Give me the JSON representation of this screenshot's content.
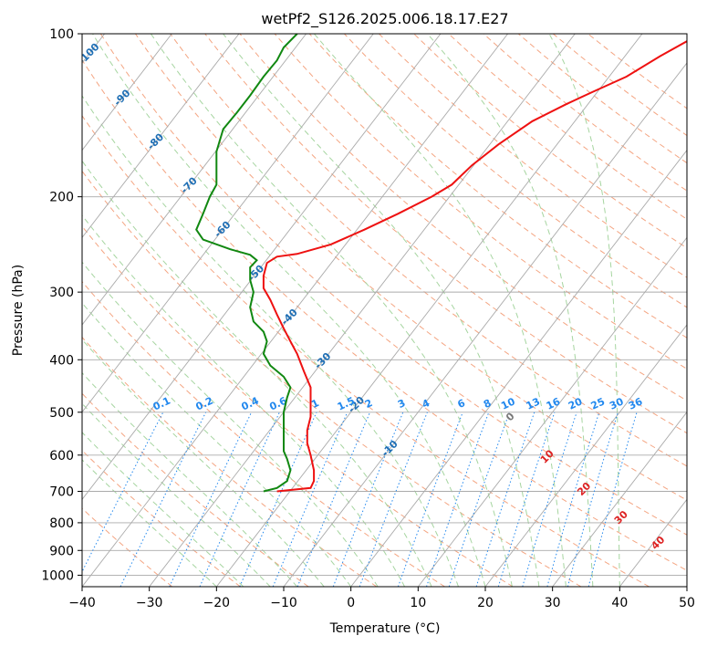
{
  "chart_data": {
    "type": "line",
    "title": "wetPf2_S126.2025.006.18.17.E27",
    "xlabel": "Temperature (°C)",
    "ylabel": "Pressure (hPa)",
    "xlim": [
      -40,
      50
    ],
    "ylim": [
      1050,
      100
    ],
    "y_scale": "log",
    "grid": true,
    "x_ticks": [
      -40,
      -30,
      -20,
      -10,
      0,
      10,
      20,
      30,
      40,
      50
    ],
    "y_ticks": [
      100,
      200,
      300,
      400,
      500,
      600,
      700,
      800,
      900,
      1000
    ],
    "colors": {
      "temperature": "#ee1111",
      "dewpoint": "#118811",
      "isotherm_label": "#1f6fb5",
      "mixing_ratio": "#2288ee",
      "thetae_label": "#dd2222",
      "dry_adiabat": "#f4a582",
      "moist_adiabat": "#a6d5a0",
      "grid": "#aaaaaa"
    },
    "series": [
      {
        "key": "temperature",
        "points": [
          [
            -11,
            700
          ],
          [
            -6,
            690
          ],
          [
            -5.5,
            670
          ],
          [
            -5.5,
            640
          ],
          [
            -6,
            600
          ],
          [
            -6.5,
            570
          ],
          [
            -6.5,
            540
          ],
          [
            -6,
            510
          ],
          [
            -6,
            480
          ],
          [
            -6,
            450
          ],
          [
            -7,
            420
          ],
          [
            -8,
            390
          ],
          [
            -9,
            370
          ],
          [
            -10,
            350
          ],
          [
            -11,
            330
          ],
          [
            -12,
            310
          ],
          [
            -13,
            295
          ],
          [
            -13,
            280
          ],
          [
            -12.5,
            265
          ],
          [
            -11,
            258
          ],
          [
            -8,
            255
          ],
          [
            -3,
            245
          ],
          [
            2,
            230
          ],
          [
            7,
            215
          ],
          [
            12,
            200
          ],
          [
            15,
            190
          ],
          [
            18,
            175
          ],
          [
            22,
            160
          ],
          [
            27,
            145
          ],
          [
            32,
            135
          ],
          [
            36,
            128
          ],
          [
            41,
            120
          ],
          [
            46,
            110
          ],
          [
            52,
            100
          ]
        ]
      },
      {
        "key": "dewpoint",
        "points": [
          [
            -13,
            700
          ],
          [
            -11,
            690
          ],
          [
            -9.5,
            670
          ],
          [
            -9,
            640
          ],
          [
            -9.5,
            610
          ],
          [
            -10,
            590
          ],
          [
            -10,
            560
          ],
          [
            -10,
            530
          ],
          [
            -10,
            500
          ],
          [
            -9.5,
            470
          ],
          [
            -9,
            450
          ],
          [
            -10,
            430
          ],
          [
            -12,
            410
          ],
          [
            -13,
            390
          ],
          [
            -12.5,
            370
          ],
          [
            -13,
            355
          ],
          [
            -14.5,
            340
          ],
          [
            -15,
            320
          ],
          [
            -14.5,
            300
          ],
          [
            -15,
            285
          ],
          [
            -15,
            270
          ],
          [
            -14,
            262
          ],
          [
            -15,
            256
          ],
          [
            -18,
            250
          ],
          [
            -22,
            240
          ],
          [
            -23,
            230
          ],
          [
            -22,
            215
          ],
          [
            -21,
            200
          ],
          [
            -20,
            190
          ],
          [
            -20,
            178
          ],
          [
            -20,
            165
          ],
          [
            -19,
            150
          ],
          [
            -17,
            140
          ],
          [
            -15,
            130
          ],
          [
            -13,
            120
          ],
          [
            -11,
            112
          ],
          [
            -10,
            106
          ],
          [
            -8,
            100
          ]
        ]
      }
    ],
    "isotherm_labels": [
      "-100",
      "-90",
      "-80",
      "-70",
      "-60",
      "-50",
      "-40",
      "-30",
      "-20",
      "-10"
    ],
    "mixing_ratio_labels": [
      "0.1",
      "0.2",
      "0.4",
      "0.6",
      "1",
      "1.5",
      "2",
      "3",
      "4",
      "6",
      "8",
      "10",
      "13",
      "16",
      "20",
      "25",
      "30",
      "36"
    ],
    "thetae_labels": [
      "0",
      "10",
      "20",
      "30",
      "40"
    ]
  }
}
